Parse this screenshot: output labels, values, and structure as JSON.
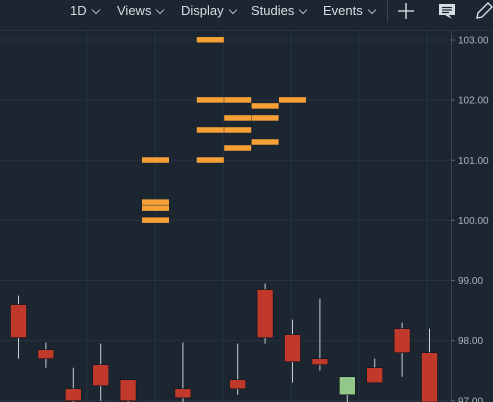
{
  "toolbar": {
    "interval": "1D",
    "views": "Views",
    "display": "Display",
    "studies": "Studies",
    "events": "Events"
  },
  "icons": {
    "add": "plus-icon",
    "comment": "comment-icon",
    "draw": "pencil-icon"
  },
  "colors": {
    "background": "#1b2631",
    "grid": "#26323d",
    "order_marker": "#f7a035",
    "candle_down": "#c0392b",
    "candle_up": "#92c98a",
    "wick": "#c9ced3"
  },
  "chart_data": {
    "type": "candlestick",
    "y_axis": {
      "range": [
        96.98,
        103.15
      ],
      "ticks": [
        "103.00",
        "102.00",
        "101.00",
        "100.00",
        "99.00",
        "98.00",
        "97.00"
      ],
      "position": "right"
    },
    "grid": true,
    "order_markers": [
      {
        "x": 7,
        "price": 103.0
      },
      {
        "x": 7,
        "price": 102.0
      },
      {
        "x": 8,
        "price": 102.0
      },
      {
        "x": 9,
        "price": 101.9
      },
      {
        "x": 10,
        "price": 102.0
      },
      {
        "x": 8,
        "price": 101.7
      },
      {
        "x": 9,
        "price": 101.7
      },
      {
        "x": 7,
        "price": 101.5
      },
      {
        "x": 8,
        "price": 101.5
      },
      {
        "x": 9,
        "price": 101.3
      },
      {
        "x": 8,
        "price": 101.2
      },
      {
        "x": 5,
        "price": 101.0
      },
      {
        "x": 7,
        "price": 101.0
      },
      {
        "x": 5,
        "price": 100.3
      },
      {
        "x": 5,
        "price": 100.2
      },
      {
        "x": 5,
        "price": 100.0
      }
    ],
    "candles": [
      {
        "x": 0,
        "open": 98.6,
        "high": 98.75,
        "low": 97.7,
        "close": 98.05
      },
      {
        "x": 1,
        "open": 97.85,
        "high": 97.97,
        "low": 97.55,
        "close": 97.7
      },
      {
        "x": 2,
        "open": 97.2,
        "high": 97.55,
        "low": 96.95,
        "close": 97.0
      },
      {
        "x": 3,
        "open": 97.6,
        "high": 97.95,
        "low": 97.0,
        "close": 97.25
      },
      {
        "x": 4,
        "open": 97.35,
        "high": 97.35,
        "low": 96.95,
        "close": 97.0
      },
      {
        "x": 6,
        "open": 97.2,
        "high": 97.97,
        "low": 96.95,
        "close": 97.05
      },
      {
        "x": 8,
        "open": 97.35,
        "high": 97.95,
        "low": 97.1,
        "close": 97.2
      },
      {
        "x": 9,
        "open": 98.85,
        "high": 98.95,
        "low": 97.95,
        "close": 98.05
      },
      {
        "x": 10,
        "open": 98.1,
        "high": 98.35,
        "low": 97.3,
        "close": 97.65
      },
      {
        "x": 11,
        "open": 97.7,
        "high": 98.7,
        "low": 97.5,
        "close": 97.6
      },
      {
        "x": 12,
        "open": 97.1,
        "high": 97.4,
        "low": 96.98,
        "close": 97.4
      },
      {
        "x": 13,
        "open": 97.55,
        "high": 97.7,
        "low": 97.3,
        "close": 97.3
      },
      {
        "x": 14,
        "open": 98.2,
        "high": 98.3,
        "low": 97.4,
        "close": 97.8
      },
      {
        "x": 15,
        "open": 97.8,
        "high": 98.2,
        "low": 96.98,
        "close": 96.98
      }
    ]
  }
}
